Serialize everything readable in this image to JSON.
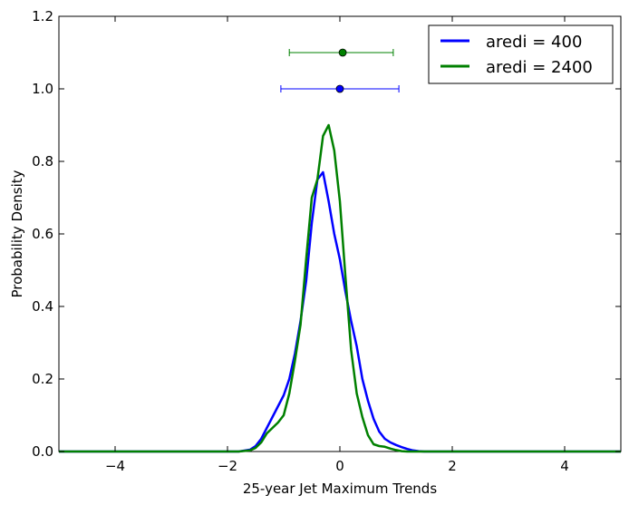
{
  "chart_data": {
    "type": "line",
    "xlabel": "25-year Jet Maximum Trends",
    "ylabel": "Probability Density",
    "xlim": [
      -5,
      5
    ],
    "ylim": [
      0,
      1.2
    ],
    "xticks": [
      -4,
      -2,
      0,
      2,
      4
    ],
    "xtick_labels": [
      "−4",
      "−2",
      "0",
      "2",
      "4"
    ],
    "yticks": [
      0.0,
      0.2,
      0.4,
      0.6,
      0.8,
      1.0,
      1.2
    ],
    "ytick_labels": [
      "0.0",
      "0.2",
      "0.4",
      "0.6",
      "0.8",
      "1.0",
      "1.2"
    ],
    "grid": false,
    "legend_position": "top-right",
    "series": [
      {
        "name": "aredi = 400",
        "color": "#0000ff",
        "x": [
          -5,
          -1.8,
          -1.6,
          -1.5,
          -1.4,
          -1.3,
          -1.2,
          -1.1,
          -1.0,
          -0.9,
          -0.8,
          -0.7,
          -0.6,
          -0.5,
          -0.4,
          -0.3,
          -0.2,
          -0.1,
          0.0,
          0.1,
          0.2,
          0.3,
          0.4,
          0.5,
          0.6,
          0.7,
          0.8,
          0.9,
          1.0,
          1.1,
          1.2,
          1.3,
          1.4,
          1.5,
          1.6,
          1.7,
          1.8,
          2.0,
          5
        ],
        "y": [
          0.0,
          0.0,
          0.005,
          0.015,
          0.035,
          0.065,
          0.095,
          0.125,
          0.155,
          0.2,
          0.27,
          0.36,
          0.47,
          0.63,
          0.75,
          0.77,
          0.69,
          0.6,
          0.53,
          0.44,
          0.36,
          0.29,
          0.2,
          0.14,
          0.09,
          0.055,
          0.035,
          0.025,
          0.018,
          0.012,
          0.007,
          0.003,
          0.001,
          0.0,
          0.0,
          0.0,
          0.0,
          0.0,
          0.0
        ],
        "x_shift_note": ""
      },
      {
        "name": "aredi = 2400",
        "color": "#008000",
        "x": [
          -5,
          -1.8,
          -1.6,
          -1.5,
          -1.4,
          -1.3,
          -1.2,
          -1.1,
          -1.0,
          -0.9,
          -0.8,
          -0.7,
          -0.6,
          -0.5,
          -0.4,
          -0.3,
          -0.2,
          -0.1,
          0.0,
          0.1,
          0.2,
          0.3,
          0.4,
          0.5,
          0.6,
          0.7,
          0.8,
          0.9,
          1.0,
          1.1,
          1.2,
          1.3,
          1.4,
          1.5,
          1.6,
          1.7,
          1.8,
          2.0,
          5
        ],
        "y": [
          0.0,
          0.0,
          0.003,
          0.01,
          0.025,
          0.05,
          0.065,
          0.08,
          0.1,
          0.16,
          0.25,
          0.35,
          0.53,
          0.7,
          0.75,
          0.87,
          0.9,
          0.83,
          0.69,
          0.48,
          0.28,
          0.16,
          0.095,
          0.045,
          0.02,
          0.015,
          0.013,
          0.008,
          0.004,
          0.001,
          0.0,
          0.0,
          0.0,
          0.0,
          0.0,
          0.0,
          0.0,
          0.0,
          0.0
        ]
      }
    ],
    "errorbars": [
      {
        "series": "aredi = 2400",
        "color": "#008000",
        "x": 0.05,
        "y": 1.1,
        "xmin": -0.9,
        "xmax": 0.95
      },
      {
        "series": "aredi = 400",
        "color": "#0000ff",
        "x": 0.0,
        "y": 1.0,
        "xmin": -1.05,
        "xmax": 1.05
      }
    ]
  }
}
